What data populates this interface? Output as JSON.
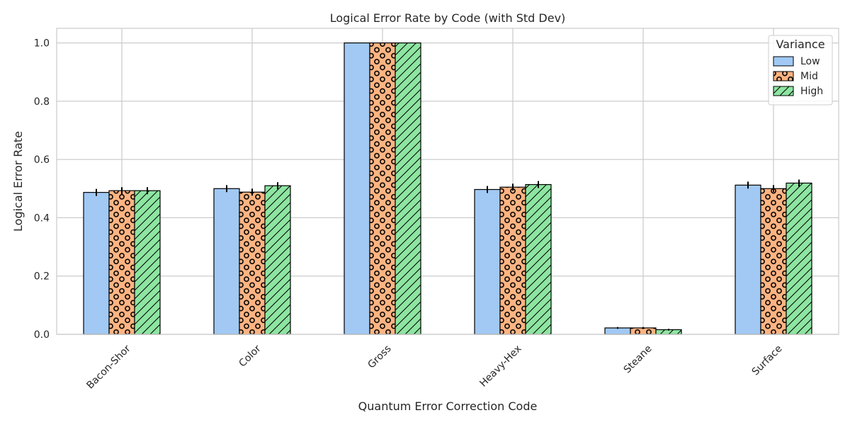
{
  "chart_data": {
    "type": "bar",
    "title": "Logical Error Rate by Code (with Std Dev)",
    "xlabel": "Quantum Error Correction Code",
    "ylabel": "Logical Error Rate",
    "ylim": [
      0,
      1.05
    ],
    "yticks": [
      0.0,
      0.2,
      0.4,
      0.6,
      0.8,
      1.0
    ],
    "ytick_labels": [
      "0.0",
      "0.2",
      "0.4",
      "0.6",
      "0.8",
      "1.0"
    ],
    "categories": [
      "Bacon-Shor",
      "Color",
      "Gross",
      "Heavy-Hex",
      "Steane",
      "Surface"
    ],
    "grid": true,
    "legend": {
      "title": "Variance",
      "placement": "top-right"
    },
    "series": [
      {
        "name": "Low",
        "color": "#a1c9f4",
        "pattern": "none",
        "values": [
          0.487,
          0.5,
          1.0,
          0.497,
          0.022,
          0.512
        ],
        "errors": [
          0.012,
          0.012,
          0.0,
          0.012,
          0.003,
          0.012
        ]
      },
      {
        "name": "Mid",
        "color": "#ffb482",
        "pattern": "circles",
        "values": [
          0.493,
          0.488,
          1.0,
          0.505,
          0.022,
          0.5
        ],
        "errors": [
          0.012,
          0.012,
          0.0,
          0.012,
          0.003,
          0.012
        ]
      },
      {
        "name": "High",
        "color": "#8de5a1",
        "pattern": "diagonal",
        "values": [
          0.493,
          0.51,
          1.0,
          0.514,
          0.016,
          0.519
        ],
        "errors": [
          0.012,
          0.012,
          0.0,
          0.012,
          0.003,
          0.012
        ]
      }
    ]
  }
}
